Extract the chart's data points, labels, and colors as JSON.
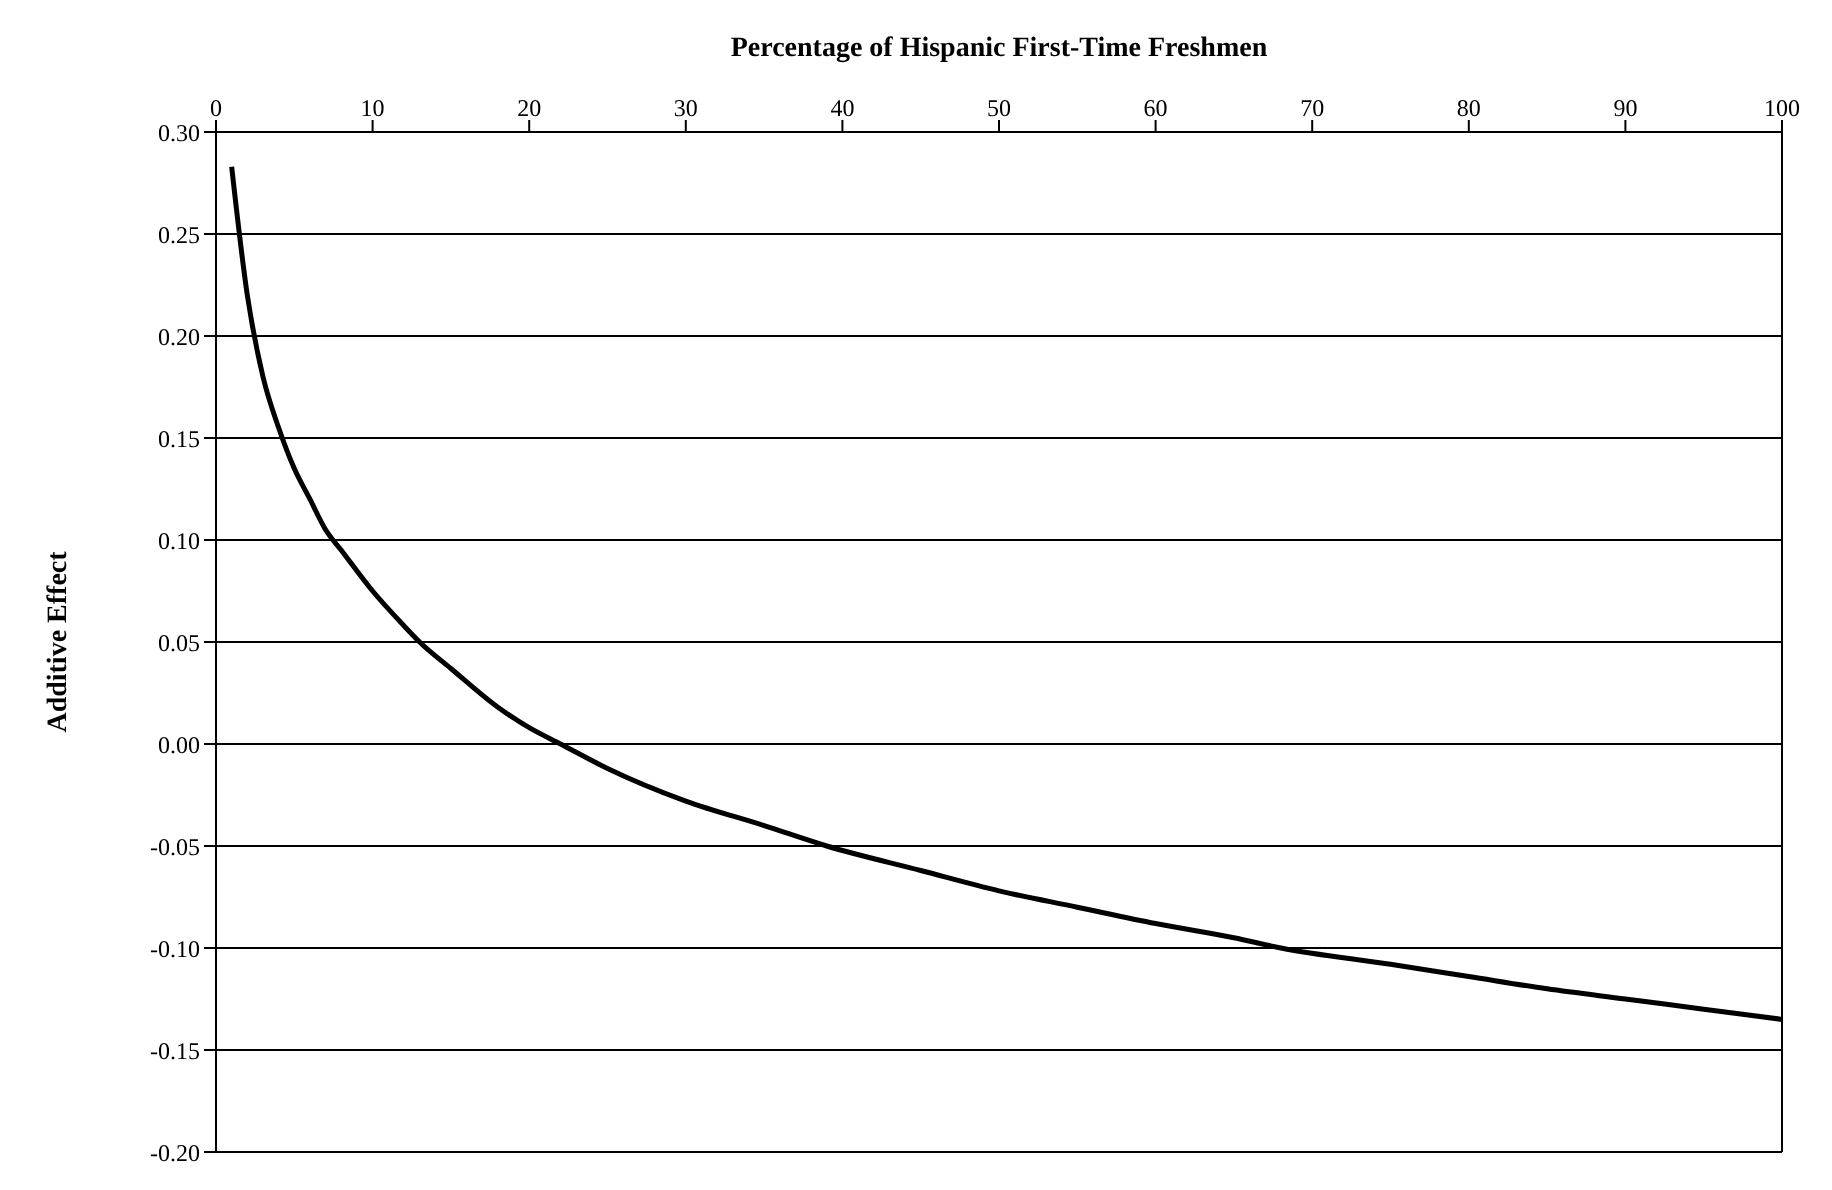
{
  "chart_data": {
    "type": "line",
    "xlabel": "Percentage of Hispanic First-Time Freshmen",
    "ylabel": "Additive Effect",
    "x": [
      1,
      2,
      3,
      4,
      5,
      6,
      7,
      8,
      10,
      12,
      13,
      15,
      18,
      20,
      22,
      25,
      30,
      35,
      39,
      45,
      50,
      55,
      60,
      65,
      68,
      75,
      80,
      85,
      90,
      95,
      100
    ],
    "series": [
      {
        "color": "#000000",
        "values": [
          0.283,
          0.22,
          0.18,
          0.155,
          0.135,
          0.12,
          0.105,
          0.095,
          0.075,
          0.058,
          0.05,
          0.037,
          0.018,
          0.008,
          0.0,
          -0.012,
          -0.028,
          -0.04,
          -0.05,
          -0.062,
          -0.072,
          -0.08,
          -0.088,
          -0.095,
          -0.1,
          -0.108,
          -0.114,
          -0.12,
          -0.125,
          -0.13,
          -0.135
        ]
      }
    ],
    "xlim": [
      0,
      100
    ],
    "xticks": [
      0,
      10,
      20,
      30,
      40,
      50,
      60,
      70,
      80,
      90,
      100
    ],
    "ylim": [
      -0.2,
      0.3
    ],
    "yticks": [
      {
        "value": -0.2,
        "label": "-0.20"
      },
      {
        "value": -0.15,
        "label": "-0.15"
      },
      {
        "value": -0.1,
        "label": "-0.10"
      },
      {
        "value": -0.05,
        "label": "-0.05"
      },
      {
        "value": 0,
        "label": "0.00"
      },
      {
        "value": 0.05,
        "label": "0.05"
      },
      {
        "value": 0.1,
        "label": "0.10"
      },
      {
        "value": 0.15,
        "label": "0.15"
      },
      {
        "value": 0.2,
        "label": "0.20"
      },
      {
        "value": 0.25,
        "label": "0.25"
      },
      {
        "value": 0.3,
        "label": "0.30"
      }
    ],
    "grid": "y",
    "marker": "none",
    "line_style": "solid"
  }
}
